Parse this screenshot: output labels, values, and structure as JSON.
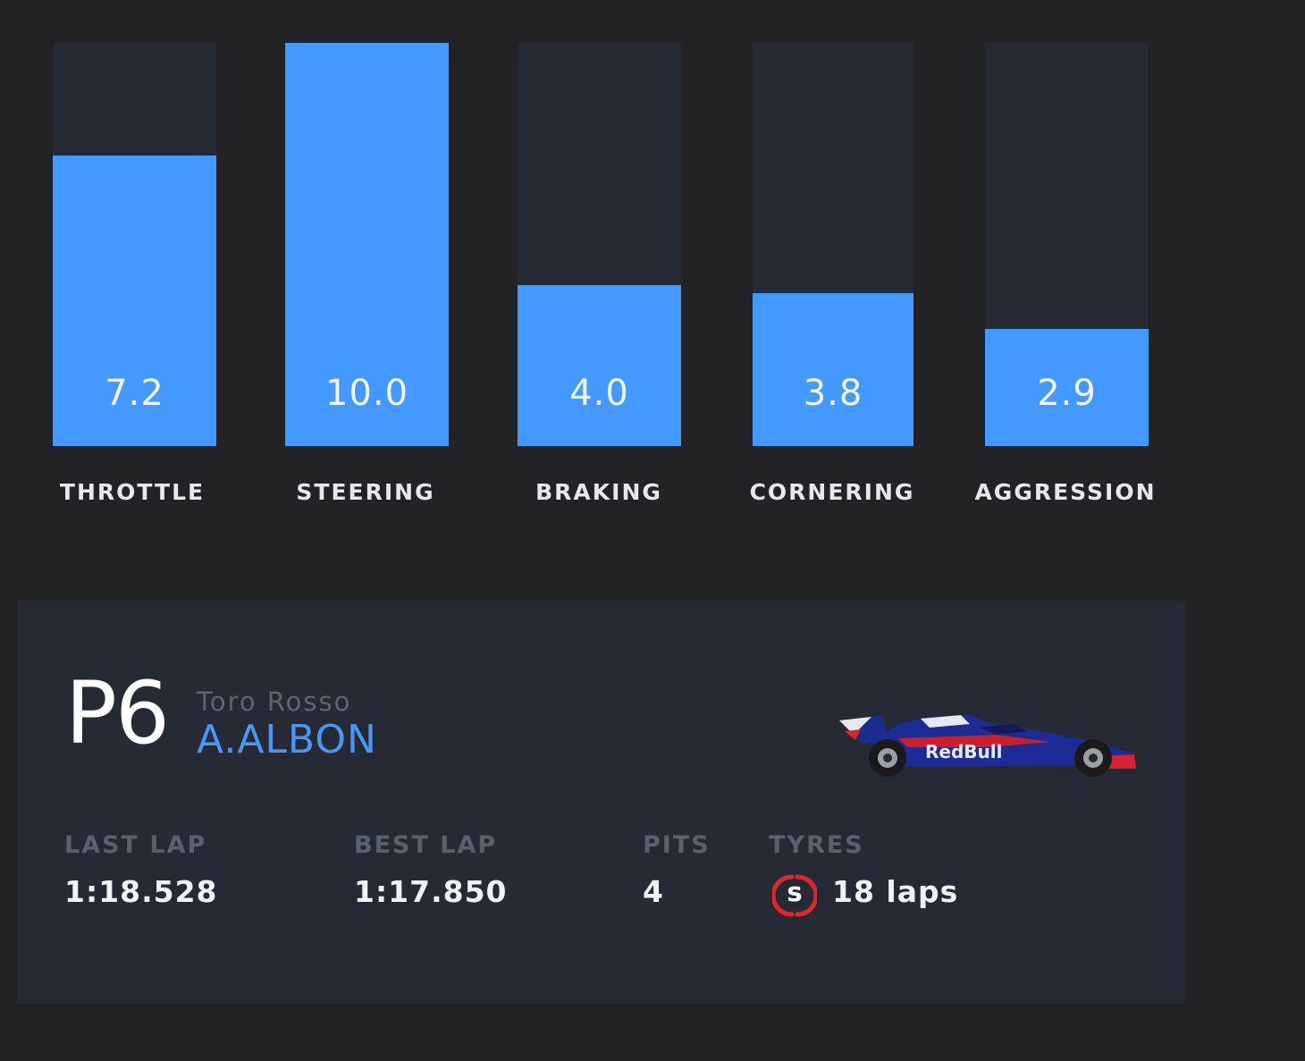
{
  "chart_data": {
    "type": "bar",
    "categories": [
      "THROTTLE",
      "STEERING",
      "BRAKING",
      "CORNERING",
      "AGGRESSION"
    ],
    "values": [
      7.2,
      10.0,
      4.0,
      3.8,
      2.9
    ],
    "value_labels": [
      "7.2",
      "10.0",
      "4.0",
      "3.8",
      "2.9"
    ],
    "ylim": [
      0,
      10
    ],
    "grid": false,
    "colors": {
      "fill": "#4499ff",
      "track": "#262a33"
    }
  },
  "driver": {
    "position": "P6",
    "team": "Toro Rosso",
    "name": "A.ALBON"
  },
  "stats": {
    "last_lap_label": "LAST LAP",
    "last_lap_value": "1:18.528",
    "best_lap_label": "BEST LAP",
    "best_lap_value": "1:17.850",
    "pits_label": "PITS",
    "pits_value": "4",
    "tyres_label": "TYRES",
    "tyre_compound": "S",
    "tyre_compound_color": "#e3262b",
    "tyre_laps": "18 laps"
  },
  "icons": {
    "car": "toro-rosso-car-icon",
    "tyre": "soft-tyre-icon"
  }
}
